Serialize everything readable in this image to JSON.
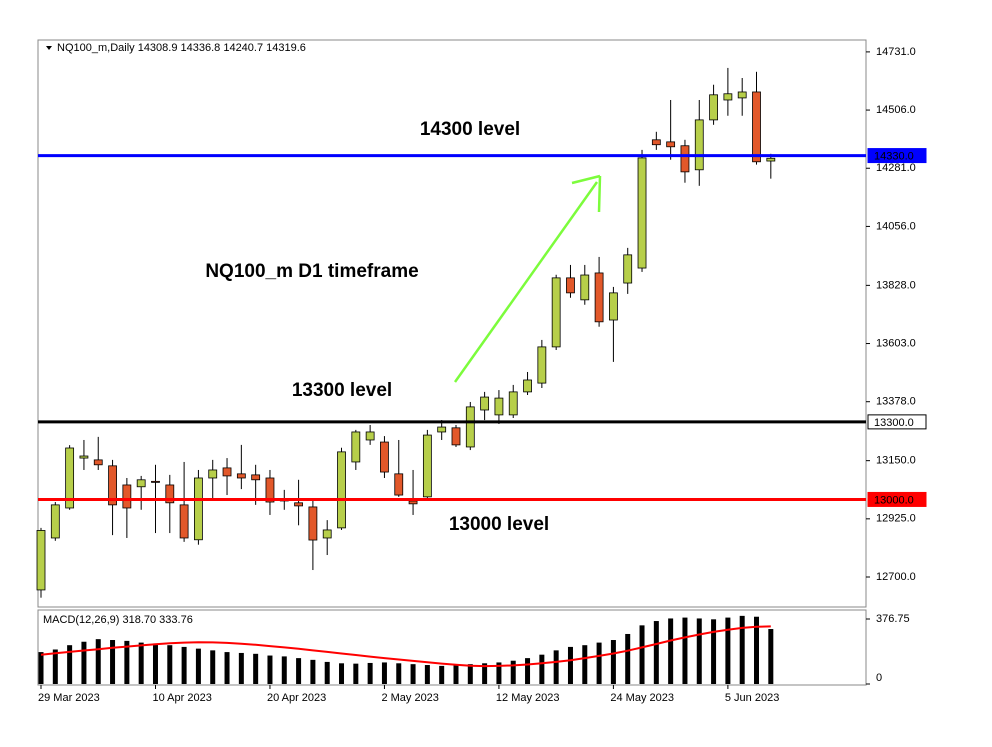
{
  "chart_data": [
    {
      "type": "candlestick",
      "title": "NQ100_m,Daily  14308.9 14336.8 14240.7 14319.6",
      "categories": [
        "29 Mar 2023",
        null,
        null,
        null,
        null,
        null,
        null,
        null,
        "10 Apr 2023",
        null,
        null,
        null,
        null,
        null,
        null,
        null,
        "20 Apr 2023",
        null,
        null,
        null,
        null,
        null,
        null,
        null,
        "2 May 2023",
        null,
        null,
        null,
        null,
        null,
        null,
        null,
        "12 May 2023",
        null,
        null,
        null,
        null,
        null,
        null,
        null,
        "24 May 2023",
        null,
        null,
        null,
        null,
        null,
        null,
        null,
        "5 Jun 2023",
        null,
        null,
        null
      ],
      "open": [
        12650,
        12851,
        12967,
        13160,
        13153,
        13130,
        13056,
        13049,
        13070,
        13056,
        12979,
        12844,
        13083,
        13122,
        13099,
        13095,
        13083,
        12998,
        12987,
        12971,
        12851,
        12890,
        13145,
        13230,
        13222,
        13099,
        12994,
        13010,
        13261,
        13277,
        13203,
        13346,
        13327,
        13327,
        13416,
        13450,
        13590,
        13857,
        13772,
        13876,
        13694,
        13837,
        13895,
        14391,
        14383,
        14368,
        14275,
        14468,
        14545,
        14553,
        14576,
        14308.9
      ],
      "high": [
        12890,
        12990,
        13210,
        13230,
        13242,
        13153,
        13083,
        13091,
        13134,
        13095,
        13145,
        13114,
        13153,
        13160,
        13211,
        13134,
        13114,
        13037,
        13076,
        12998,
        12920,
        13200,
        13269,
        13288,
        13245,
        13230,
        13114,
        13269,
        13307,
        13288,
        13377,
        13416,
        13423,
        13443,
        13493,
        13617,
        13869,
        13907,
        13907,
        13938,
        13822,
        13973,
        14352,
        14422,
        14545,
        14391,
        14545,
        14604,
        14669,
        14630,
        14654,
        14336.8
      ],
      "low": [
        12620,
        12840,
        12960,
        13114,
        13114,
        12862,
        12851,
        12960,
        12870,
        12870,
        12836,
        12825,
        12994,
        13017,
        13040,
        12979,
        12940,
        12960,
        12900,
        12727,
        12785,
        12882,
        13114,
        13211,
        13083,
        13010,
        12940,
        12998,
        13230,
        13203,
        13191,
        13307,
        13292,
        13315,
        13404,
        13431,
        13578,
        13780,
        13753,
        13668,
        13532,
        13795,
        13880,
        14352,
        14314,
        14225,
        14213,
        14449,
        14484,
        14484,
        14295,
        14240.7
      ],
      "close": [
        12880,
        12979,
        13199,
        13168,
        13134,
        12979,
        12967,
        13076,
        13066,
        12987,
        12851,
        13083,
        13114,
        13091,
        13083,
        13076,
        12990,
        12995,
        12975,
        12843,
        12882,
        13184,
        13261,
        13261,
        13106,
        13017,
        12983,
        13249,
        13280,
        13211,
        13358,
        13396,
        13392,
        13416,
        13462,
        13590,
        13857,
        13799,
        13868,
        13687,
        13799,
        13946,
        14321,
        14372,
        14364,
        14267,
        14468,
        14565,
        14569,
        14576,
        14306,
        14319.6
      ],
      "up_color": "#b7cf4a",
      "down_color": "#e2582a",
      "ylim": [
        12584,
        14777
      ],
      "yticks": [
        {
          "value": 14731,
          "label": "14731.0"
        },
        {
          "value": 14506,
          "label": "14506.0"
        },
        {
          "value": 14281,
          "label": "14281.0"
        },
        {
          "value": 14056,
          "label": "14056.0"
        },
        {
          "value": 13828,
          "label": "13828.0"
        },
        {
          "value": 13603,
          "label": "13603.0"
        },
        {
          "value": 13378,
          "label": "13378.0"
        },
        {
          "value": 13150,
          "label": "13150.0"
        },
        {
          "value": 12925,
          "label": "12925.0"
        },
        {
          "value": 12700,
          "label": "12700.0"
        }
      ],
      "levels": [
        {
          "value": 14330,
          "label": "14330.0",
          "color": "#0000ff"
        },
        {
          "value": 13300,
          "label": "13300.0",
          "color": "#000000"
        },
        {
          "value": 13000,
          "label": "13000.0",
          "color": "#ff0000"
        }
      ],
      "annotations": [
        "14300 level",
        "NQ100_m D1 timeframe",
        "13300 level",
        "13000 level"
      ]
    },
    {
      "type": "macd",
      "title": "MACD(12,26,9) 318.70 333.76",
      "series": [
        {
          "color": "#000000",
          "values": [
            185,
            200,
            225,
            245,
            260,
            255,
            250,
            240,
            235,
            225,
            215,
            205,
            195,
            185,
            180,
            175,
            165,
            160,
            150,
            140,
            128,
            120,
            118,
            122,
            125,
            120,
            115,
            110,
            105,
            108,
            115,
            120,
            125,
            135,
            150,
            170,
            195,
            215,
            225,
            240,
            255,
            290,
            340,
            365,
            380,
            385,
            380,
            375,
            385,
            395,
            390,
            318.7
          ]
        },
        {
          "color": "#ff0000",
          "values": [
            170,
            178,
            186,
            194,
            202,
            210,
            217,
            224,
            230,
            236,
            240,
            242,
            241,
            238,
            233,
            227,
            220,
            212,
            204,
            195,
            186,
            177,
            168,
            159,
            150,
            142,
            134,
            126,
            118,
            112,
            106,
            104,
            105,
            108,
            113,
            120,
            128,
            138,
            150,
            163,
            177,
            193,
            212,
            232,
            252,
            270,
            287,
            302,
            315,
            325,
            332,
            333.76
          ]
        }
      ],
      "ylim": [
        0,
        429
      ],
      "yticks": [
        376.75,
        0
      ]
    }
  ]
}
